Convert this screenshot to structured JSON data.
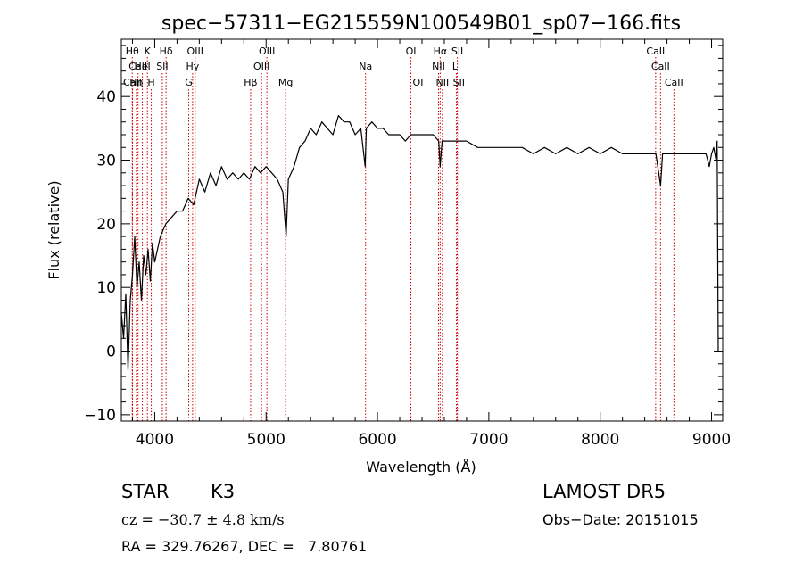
{
  "chart_data": {
    "type": "line",
    "title": "spec−57311−EG215559N100549B01_sp07−166.fits",
    "xlabel": "Wavelength (Å)",
    "ylabel": "Flux (relative)",
    "xlim": [
      3700,
      9100
    ],
    "ylim": [
      -11,
      49
    ],
    "xticks": [
      4000,
      5000,
      6000,
      7000,
      8000,
      9000
    ],
    "yticks": [
      -10,
      0,
      10,
      20,
      30,
      40
    ],
    "grid": false,
    "series": [
      {
        "color": "#000000",
        "x": [
          3700,
          3720,
          3740,
          3760,
          3780,
          3800,
          3820,
          3840,
          3860,
          3880,
          3900,
          3920,
          3940,
          3960,
          3980,
          4000,
          4050,
          4100,
          4150,
          4200,
          4250,
          4300,
          4350,
          4400,
          4450,
          4500,
          4550,
          4600,
          4650,
          4700,
          4750,
          4800,
          4850,
          4900,
          4950,
          5000,
          5050,
          5100,
          5150,
          5180,
          5200,
          5250,
          5300,
          5350,
          5400,
          5450,
          5500,
          5550,
          5600,
          5650,
          5700,
          5750,
          5800,
          5850,
          5890,
          5900,
          5950,
          6000,
          6050,
          6100,
          6150,
          6200,
          6250,
          6300,
          6350,
          6400,
          6450,
          6500,
          6550,
          6563,
          6580,
          6600,
          6650,
          6700,
          6800,
          6900,
          7000,
          7100,
          7200,
          7300,
          7400,
          7500,
          7600,
          7700,
          7800,
          7900,
          8000,
          8100,
          8200,
          8300,
          8400,
          8450,
          8500,
          8542,
          8560,
          8600,
          8650,
          8700,
          8750,
          8800,
          8850,
          8900,
          8950,
          8980,
          9000,
          9020,
          9040,
          9050,
          9060
        ],
        "y": [
          6,
          2,
          9,
          -3,
          8,
          12,
          18,
          10,
          14,
          8,
          15,
          12,
          16,
          11,
          17,
          14,
          18,
          20,
          21,
          22,
          22,
          24,
          23,
          27,
          25,
          28,
          26,
          29,
          27,
          28,
          27,
          28,
          27,
          29,
          28,
          29,
          28,
          27,
          25,
          18,
          27,
          29,
          32,
          33,
          35,
          34,
          36,
          35,
          34,
          37,
          36,
          36,
          34,
          35,
          29,
          35,
          36,
          35,
          35,
          34,
          34,
          34,
          33,
          34,
          34,
          34,
          34,
          34,
          33,
          29,
          33,
          33,
          33,
          33,
          33,
          32,
          32,
          32,
          32,
          32,
          31,
          32,
          31,
          32,
          31,
          32,
          31,
          32,
          31,
          31,
          31,
          31,
          31,
          26,
          31,
          31,
          31,
          31,
          31,
          31,
          31,
          31,
          31,
          29,
          31,
          32,
          30,
          33,
          0
        ]
      }
    ],
    "spectral_lines": [
      {
        "label": "Hθ",
        "wave": 3798,
        "row": 1
      },
      {
        "label": "CaII",
        "wave": 3850,
        "row": 2
      },
      {
        "label": "K",
        "wave": 3934,
        "row": 1
      },
      {
        "label": "HeI",
        "wave": 3889,
        "row": 2
      },
      {
        "label": "Hη",
        "wave": 3835,
        "row": 3
      },
      {
        "label": "CaII",
        "wave": 3800,
        "row": 3
      },
      {
        "label": "H",
        "wave": 3969,
        "row": 3
      },
      {
        "label": "Hδ",
        "wave": 4102,
        "row": 1
      },
      {
        "label": "SII",
        "wave": 4068,
        "row": 2
      },
      {
        "label": "OIII",
        "wave": 4363,
        "row": 1
      },
      {
        "label": "Hγ",
        "wave": 4340,
        "row": 2
      },
      {
        "label": "G",
        "wave": 4305,
        "row": 3
      },
      {
        "label": "OIII",
        "wave": 5007,
        "row": 1
      },
      {
        "label": "OIII",
        "wave": 4959,
        "row": 2
      },
      {
        "label": "Hβ",
        "wave": 4861,
        "row": 3
      },
      {
        "label": "Mg",
        "wave": 5175,
        "row": 3
      },
      {
        "label": "Na",
        "wave": 5893,
        "row": 2
      },
      {
        "label": "OI",
        "wave": 6300,
        "row": 1
      },
      {
        "label": "OI",
        "wave": 6364,
        "row": 3
      },
      {
        "label": "Hα",
        "wave": 6563,
        "row": 1
      },
      {
        "label": "NII",
        "wave": 6548,
        "row": 2
      },
      {
        "label": "NII",
        "wave": 6583,
        "row": 3
      },
      {
        "label": "SII",
        "wave": 6717,
        "row": 1
      },
      {
        "label": "Li",
        "wave": 6708,
        "row": 2
      },
      {
        "label": "SII",
        "wave": 6731,
        "row": 3
      },
      {
        "label": "CaII",
        "wave": 8498,
        "row": 1
      },
      {
        "label": "CaII",
        "wave": 8542,
        "row": 2
      },
      {
        "label": "CaII",
        "wave": 8662,
        "row": 3
      }
    ],
    "line_color": "#cc0000"
  },
  "info": {
    "class_label": "STAR",
    "subclass_label": "K3",
    "survey": "LAMOST DR5",
    "cz": "cz = −30.7 ± 4.8 km/s",
    "obs_date": "Obs−Date: 20151015",
    "coords": "RA = 329.76267, DEC =   7.80761"
  }
}
